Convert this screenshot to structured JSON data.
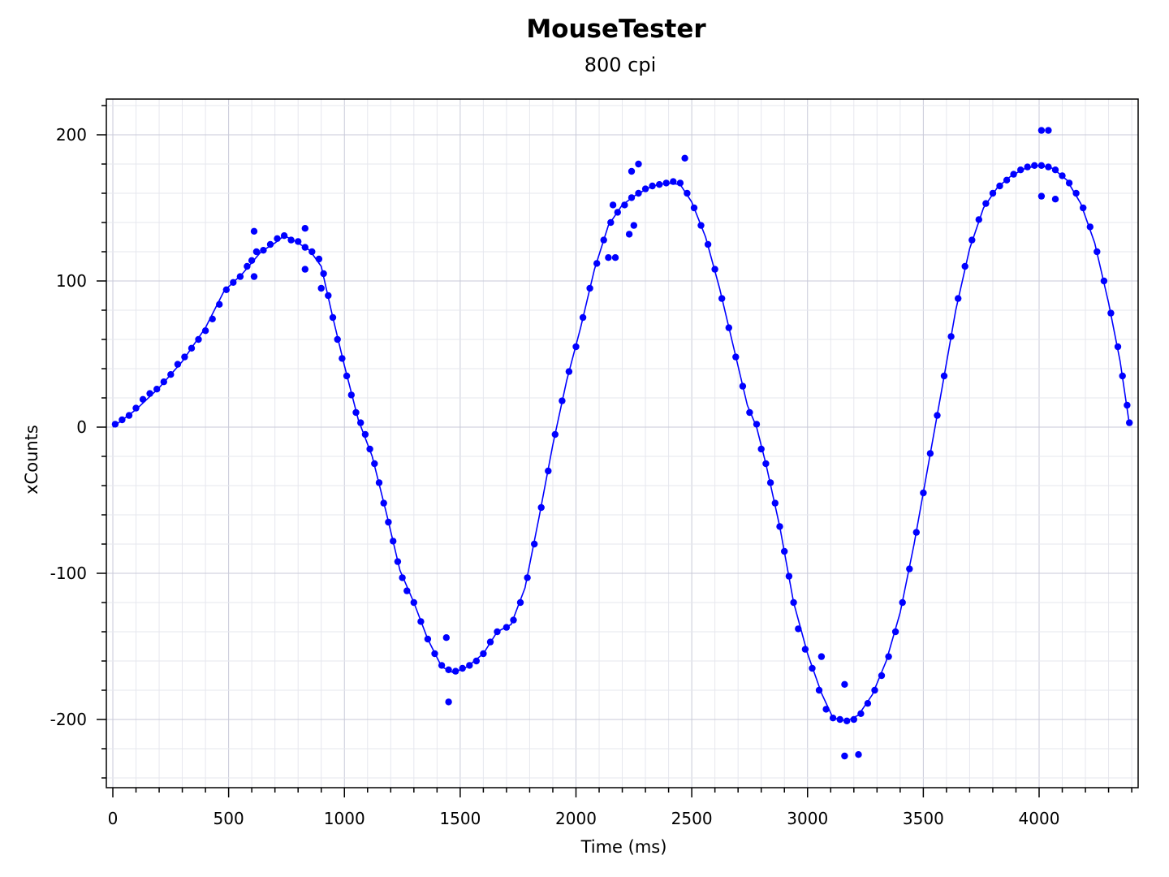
{
  "chart_data": {
    "type": "scatter",
    "title": "MouseTester",
    "subtitle": "800 cpi",
    "xlabel": "Time (ms)",
    "ylabel": "xCounts",
    "xlim": [
      -30,
      4420
    ],
    "ylim": [
      -245,
      225
    ],
    "x_ticks": [
      0,
      500,
      1000,
      1500,
      2000,
      2500,
      3000,
      3500,
      4000
    ],
    "x_tick_labels": [
      "0",
      "500",
      "1000",
      "1500",
      "2000",
      "2500",
      "3000",
      "3500",
      "4000"
    ],
    "y_ticks": [
      200,
      100,
      0,
      -100,
      -200
    ],
    "y_tick_labels": [
      "200",
      "100",
      "0",
      "-100",
      "-200"
    ],
    "grid": true,
    "series": [
      {
        "color": "#0000ff",
        "style": "points+line",
        "points": [
          [
            10,
            2
          ],
          [
            40,
            5
          ],
          [
            70,
            8
          ],
          [
            100,
            13
          ],
          [
            130,
            19
          ],
          [
            160,
            23
          ],
          [
            190,
            26
          ],
          [
            220,
            31
          ],
          [
            250,
            36
          ],
          [
            280,
            43
          ],
          [
            310,
            48
          ],
          [
            340,
            54
          ],
          [
            370,
            60
          ],
          [
            400,
            66
          ],
          [
            430,
            74
          ],
          [
            460,
            84
          ],
          [
            490,
            94
          ],
          [
            520,
            99
          ],
          [
            550,
            103
          ],
          [
            580,
            110
          ],
          [
            600,
            114
          ],
          [
            620,
            120
          ],
          [
            650,
            121
          ],
          [
            680,
            125
          ],
          [
            710,
            129
          ],
          [
            740,
            131
          ],
          [
            770,
            128
          ],
          [
            800,
            127
          ],
          [
            830,
            123
          ],
          [
            860,
            120
          ],
          [
            890,
            115
          ],
          [
            910,
            105
          ],
          [
            930,
            90
          ],
          [
            950,
            75
          ],
          [
            970,
            60
          ],
          [
            990,
            47
          ],
          [
            1010,
            35
          ],
          [
            1030,
            22
          ],
          [
            1050,
            10
          ],
          [
            1070,
            3
          ],
          [
            1090,
            -5
          ],
          [
            1110,
            -15
          ],
          [
            1130,
            -25
          ],
          [
            1150,
            -38
          ],
          [
            1170,
            -52
          ],
          [
            1190,
            -65
          ],
          [
            1210,
            -78
          ],
          [
            1230,
            -92
          ],
          [
            1250,
            -103
          ],
          [
            1270,
            -112
          ],
          [
            1300,
            -120
          ],
          [
            1330,
            -133
          ],
          [
            1360,
            -145
          ],
          [
            1390,
            -155
          ],
          [
            1420,
            -163
          ],
          [
            1450,
            -166
          ],
          [
            1480,
            -167
          ],
          [
            1510,
            -165
          ],
          [
            1540,
            -163
          ],
          [
            1570,
            -160
          ],
          [
            1600,
            -155
          ],
          [
            1630,
            -147
          ],
          [
            1660,
            -140
          ],
          [
            1700,
            -137
          ],
          [
            1730,
            -132
          ],
          [
            1760,
            -120
          ],
          [
            1790,
            -103
          ],
          [
            1820,
            -80
          ],
          [
            1850,
            -55
          ],
          [
            1880,
            -30
          ],
          [
            1910,
            -5
          ],
          [
            1940,
            18
          ],
          [
            1970,
            38
          ],
          [
            2000,
            55
          ],
          [
            2030,
            75
          ],
          [
            2060,
            95
          ],
          [
            2090,
            112
          ],
          [
            2120,
            128
          ],
          [
            2150,
            140
          ],
          [
            2180,
            147
          ],
          [
            2210,
            152
          ],
          [
            2240,
            157
          ],
          [
            2270,
            160
          ],
          [
            2300,
            163
          ],
          [
            2330,
            165
          ],
          [
            2360,
            166
          ],
          [
            2390,
            167
          ],
          [
            2420,
            168
          ],
          [
            2450,
            167
          ],
          [
            2480,
            160
          ],
          [
            2510,
            150
          ],
          [
            2540,
            138
          ],
          [
            2570,
            125
          ],
          [
            2600,
            108
          ],
          [
            2630,
            88
          ],
          [
            2660,
            68
          ],
          [
            2690,
            48
          ],
          [
            2720,
            28
          ],
          [
            2750,
            10
          ],
          [
            2780,
            2
          ],
          [
            2800,
            -15
          ],
          [
            2820,
            -25
          ],
          [
            2840,
            -38
          ],
          [
            2860,
            -52
          ],
          [
            2880,
            -68
          ],
          [
            2900,
            -85
          ],
          [
            2920,
            -102
          ],
          [
            2940,
            -120
          ],
          [
            2960,
            -138
          ],
          [
            2990,
            -152
          ],
          [
            3020,
            -165
          ],
          [
            3050,
            -180
          ],
          [
            3080,
            -193
          ],
          [
            3110,
            -199
          ],
          [
            3140,
            -200
          ],
          [
            3170,
            -201
          ],
          [
            3200,
            -200
          ],
          [
            3230,
            -196
          ],
          [
            3260,
            -189
          ],
          [
            3290,
            -180
          ],
          [
            3320,
            -170
          ],
          [
            3350,
            -157
          ],
          [
            3380,
            -140
          ],
          [
            3410,
            -120
          ],
          [
            3440,
            -97
          ],
          [
            3470,
            -72
          ],
          [
            3500,
            -45
          ],
          [
            3530,
            -18
          ],
          [
            3560,
            8
          ],
          [
            3590,
            35
          ],
          [
            3620,
            62
          ],
          [
            3650,
            88
          ],
          [
            3680,
            110
          ],
          [
            3710,
            128
          ],
          [
            3740,
            142
          ],
          [
            3770,
            153
          ],
          [
            3800,
            160
          ],
          [
            3830,
            165
          ],
          [
            3860,
            169
          ],
          [
            3890,
            173
          ],
          [
            3920,
            176
          ],
          [
            3950,
            178
          ],
          [
            3980,
            179
          ],
          [
            4010,
            179
          ],
          [
            4040,
            178
          ],
          [
            4070,
            176
          ],
          [
            4100,
            172
          ],
          [
            4130,
            167
          ],
          [
            4160,
            160
          ],
          [
            4190,
            150
          ],
          [
            4220,
            137
          ],
          [
            4250,
            120
          ],
          [
            4280,
            100
          ],
          [
            4310,
            78
          ],
          [
            4340,
            55
          ],
          [
            4360,
            35
          ],
          [
            4380,
            15
          ],
          [
            4390,
            3
          ],
          [
            610,
            134
          ],
          [
            610,
            103
          ],
          [
            830,
            136
          ],
          [
            830,
            108
          ],
          [
            1440,
            -144
          ],
          [
            1450,
            -188
          ],
          [
            2160,
            152
          ],
          [
            2230,
            132
          ],
          [
            2250,
            138
          ],
          [
            2270,
            180
          ],
          [
            2240,
            175
          ],
          [
            2470,
            184
          ],
          [
            3060,
            -157
          ],
          [
            3160,
            -176
          ],
          [
            3160,
            -225
          ],
          [
            3220,
            -224
          ],
          [
            4010,
            203
          ],
          [
            4040,
            203
          ],
          [
            4010,
            158
          ],
          [
            4070,
            156
          ],
          [
            2170,
            116
          ],
          [
            2140,
            116
          ],
          [
            900,
            95
          ]
        ],
        "line": [
          [
            0,
            0
          ],
          [
            100,
            12
          ],
          [
            200,
            27
          ],
          [
            300,
            45
          ],
          [
            400,
            68
          ],
          [
            480,
            93
          ],
          [
            560,
            105
          ],
          [
            640,
            120
          ],
          [
            700,
            126
          ],
          [
            740,
            131
          ],
          [
            790,
            127
          ],
          [
            850,
            121
          ],
          [
            900,
            110
          ],
          [
            950,
            75
          ],
          [
            1000,
            42
          ],
          [
            1060,
            5
          ],
          [
            1120,
            -20
          ],
          [
            1180,
            -58
          ],
          [
            1240,
            -98
          ],
          [
            1300,
            -120
          ],
          [
            1360,
            -145
          ],
          [
            1420,
            -164
          ],
          [
            1470,
            -168
          ],
          [
            1530,
            -164
          ],
          [
            1600,
            -155
          ],
          [
            1660,
            -140
          ],
          [
            1720,
            -135
          ],
          [
            1780,
            -110
          ],
          [
            1840,
            -62
          ],
          [
            1900,
            -12
          ],
          [
            1960,
            32
          ],
          [
            2020,
            68
          ],
          [
            2080,
            108
          ],
          [
            2140,
            138
          ],
          [
            2200,
            152
          ],
          [
            2260,
            159
          ],
          [
            2330,
            165
          ],
          [
            2400,
            167
          ],
          [
            2450,
            166
          ],
          [
            2500,
            154
          ],
          [
            2560,
            130
          ],
          [
            2620,
            95
          ],
          [
            2680,
            55
          ],
          [
            2740,
            15
          ],
          [
            2780,
            0
          ],
          [
            2820,
            -25
          ],
          [
            2880,
            -68
          ],
          [
            2940,
            -120
          ],
          [
            3000,
            -155
          ],
          [
            3060,
            -182
          ],
          [
            3110,
            -199
          ],
          [
            3170,
            -201
          ],
          [
            3220,
            -197
          ],
          [
            3280,
            -183
          ],
          [
            3340,
            -160
          ],
          [
            3400,
            -127
          ],
          [
            3460,
            -80
          ],
          [
            3520,
            -27
          ],
          [
            3580,
            26
          ],
          [
            3640,
            80
          ],
          [
            3700,
            122
          ],
          [
            3760,
            150
          ],
          [
            3820,
            164
          ],
          [
            3880,
            172
          ],
          [
            3940,
            177
          ],
          [
            4000,
            179
          ],
          [
            4060,
            177
          ],
          [
            4120,
            169
          ],
          [
            4180,
            153
          ],
          [
            4240,
            126
          ],
          [
            4300,
            85
          ],
          [
            4350,
            45
          ],
          [
            4390,
            2
          ]
        ]
      }
    ]
  }
}
